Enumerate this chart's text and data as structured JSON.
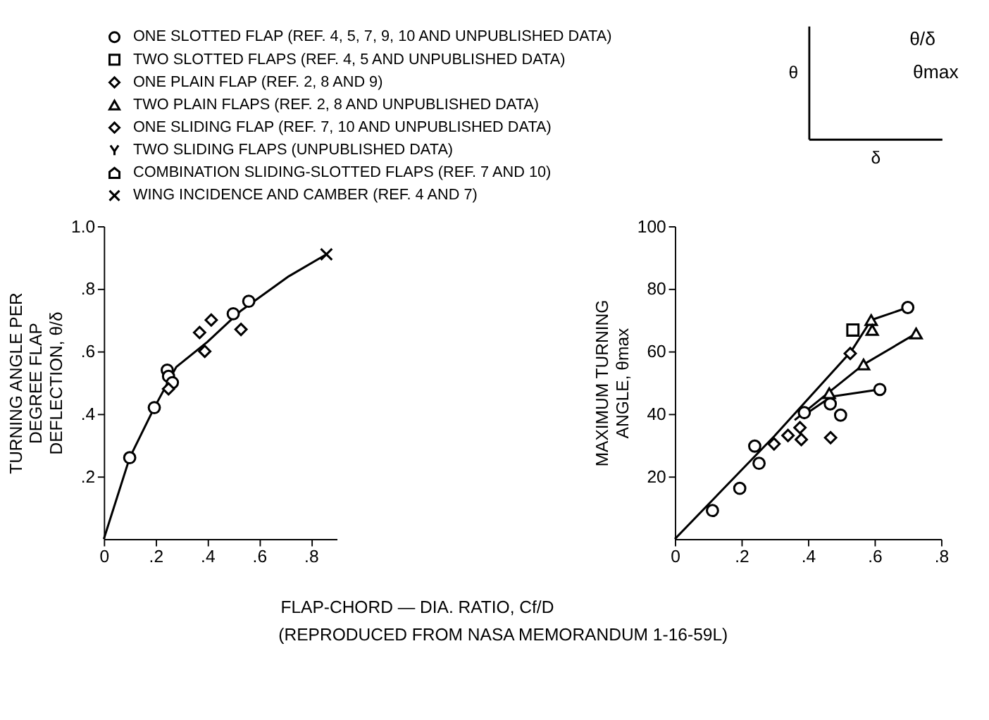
{
  "chart_data": [
    {
      "type": "scatter",
      "xlabel": "FLAP-CHORD — DIA. RATIO, Cf/D",
      "ylabel": "TURNING ANGLE PER DEGREE FLAP DEFLECTION, θ/δ",
      "legend": "top",
      "annotations": [
        "(REPRODUCED FROM NASA MEMORANDUM 1-16-59L)"
      ],
      "xlim": [
        0,
        0.9
      ],
      "xticks": [
        0,
        {
          "value": 0.2,
          "label": ".2"
        },
        {
          "value": 0.4,
          "label": ".4"
        },
        {
          "value": 0.6,
          "label": ".6"
        },
        {
          "value": 0.8,
          "label": ".8"
        }
      ],
      "ylim": [
        0,
        1.0
      ],
      "yticks": [
        {
          "value": 0.2,
          "label": ".2"
        },
        {
          "value": 0.4,
          "label": ".4"
        },
        {
          "value": 0.6,
          "label": ".6"
        },
        {
          "value": 0.8,
          "label": ".8"
        },
        {
          "value": 1.0,
          "label": "1.0"
        }
      ],
      "series": [
        {
          "type": "line",
          "color": "#000000",
          "line_style": "solid",
          "x": [
            0,
            0.1,
            0.195,
            0.28,
            0.4,
            0.53,
            0.715,
            0.86
          ],
          "values": [
            0,
            0.26,
            0.42,
            0.55,
            0.63,
            0.73,
            0.84,
            0.91
          ]
        },
        {
          "name": "ONE SLOTTED FLAP (REF. 4, 5, 7, 9, 10 AND UNPUBLISHED DATA)",
          "marker": "circle",
          "color": "#000000",
          "x": [
            0.1,
            0.195,
            0.245,
            0.25,
            0.265,
            0.5,
            0.56
          ],
          "values": [
            0.26,
            0.42,
            0.54,
            0.52,
            0.5,
            0.72,
            0.76
          ]
        },
        {
          "name": "TWO SLOTTED FLAPS (REF. 4, 5 AND UNPUBLISHED DATA)",
          "marker": "square",
          "color": "#000000"
        },
        {
          "name": "ONE PLAIN FLAP (REF. 2, 8 AND 9)",
          "marker": "diamond",
          "color": "#000000",
          "x": [
            0.25,
            0.415,
            0.53
          ],
          "values": [
            0.48,
            0.7,
            0.67
          ]
        },
        {
          "name": "TWO PLAIN FLAPS (REF. 2, 8 AND UNPUBLISHED DATA)",
          "marker": "triangle",
          "color": "#000000"
        },
        {
          "name": "ONE SLIDING FLAP (REF. 7, 10 AND UNPUBLISHED DATA)",
          "marker": "diamond",
          "color": "#000000",
          "x": [
            0.37,
            0.39
          ],
          "values": [
            0.66,
            0.6
          ]
        },
        {
          "name": "TWO SLIDING FLAPS (UNPUBLISHED DATA)",
          "marker": "y_mark",
          "color": "#000000"
        },
        {
          "name": "COMBINATION SLIDING-SLOTTED FLAPS (REF. 7 AND 10)",
          "marker": "house",
          "color": "#000000"
        },
        {
          "name": "WING INCIDENCE AND CAMBER (REF. 4 AND 7)",
          "marker": "cross",
          "color": "#000000",
          "x": [
            0.86
          ],
          "values": [
            0.91
          ]
        }
      ]
    },
    {
      "type": "scatter",
      "ylabel": "MAXIMUM TURNING ANGLE, θmax",
      "xlim": [
        0,
        0.8
      ],
      "xticks": [
        0,
        {
          "value": 0.2,
          "label": ".2"
        },
        {
          "value": 0.4,
          "label": ".4"
        },
        {
          "value": 0.6,
          "label": ".6"
        },
        {
          "value": 0.8,
          "label": ".8"
        }
      ],
      "ylim": [
        0,
        100
      ],
      "yticks": [
        20,
        40,
        60,
        80,
        100
      ],
      "series": [
        {
          "type": "line",
          "color": "#000000",
          "line_style": "solid",
          "x": [
            0,
            0.3,
            0.53,
            0.59,
            0.7
          ],
          "values": [
            0,
            33,
            60,
            70,
            74
          ]
        },
        {
          "type": "line",
          "color": "#000000",
          "line_style": "solid",
          "x": [
            0.36,
            0.464,
            0.567,
            0.725
          ],
          "values": [
            38,
            47,
            55.8,
            65.7
          ]
        },
        {
          "type": "line",
          "color": "#000000",
          "line_style": "solid",
          "x": [
            0.38,
            0.47,
            0.616
          ],
          "values": [
            39,
            45.5,
            47.8
          ]
        },
        {
          "marker": "circle",
          "color": "#000000",
          "x": [
            0.113,
            0.195,
            0.253,
            0.24,
            0.389,
            0.467,
            0.498,
            0.616,
            0.7
          ],
          "values": [
            9.1,
            16.2,
            24.2,
            29.7,
            40.4,
            43.2,
            39.6,
            47.8,
            74
          ]
        },
        {
          "marker": "square",
          "color": "#000000",
          "x": [
            0.535
          ],
          "values": [
            66.8
          ]
        },
        {
          "marker": "diamond",
          "color": "#000000",
          "x": [
            0.34,
            0.376,
            0.38,
            0.468
          ],
          "values": [
            33.1,
            35.6,
            31.8,
            32.4
          ]
        },
        {
          "marker": "triangle",
          "color": "#000000",
          "x": [
            0.464,
            0.567,
            0.59,
            0.593,
            0.725
          ],
          "values": [
            46.6,
            55.8,
            70,
            66.8,
            65.7
          ]
        },
        {
          "marker": "diamond",
          "color": "#000000",
          "x": [
            0.298,
            0.527
          ],
          "values": [
            30.4,
            59.3
          ]
        }
      ]
    },
    {
      "type": "other",
      "xlabel": "δ",
      "ylabel": "θ",
      "annotations": [
        "θ/δ",
        "θmax"
      ]
    }
  ]
}
